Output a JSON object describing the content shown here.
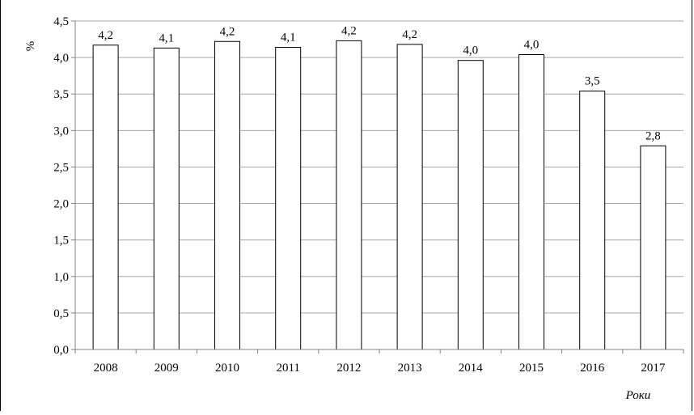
{
  "header_text": "",
  "chart_data": {
    "type": "bar",
    "categories": [
      "2008",
      "2009",
      "2010",
      "2011",
      "2012",
      "2013",
      "2014",
      "2015",
      "2016",
      "2017"
    ],
    "values": [
      4.17,
      4.13,
      4.22,
      4.14,
      4.23,
      4.18,
      3.96,
      4.04,
      3.54,
      2.79
    ],
    "data_labels": [
      "4,2",
      "4,1",
      "4,2",
      "4,1",
      "4,2",
      "4,2",
      "4,0",
      "4,0",
      "3,5",
      "2,8"
    ],
    "y_ticks": [
      "0,0",
      "0,5",
      "1,0",
      "1,5",
      "2,0",
      "2,5",
      "3,0",
      "3,5",
      "4,0",
      "4,5"
    ],
    "ylim": [
      0,
      4.5
    ],
    "ylabel": "%",
    "xlabel": "Роки",
    "title": "",
    "grid": true,
    "legend": "none",
    "colors": {
      "bar_fill": "#ffffff",
      "bar_stroke": "#000000",
      "grid": "#a6a6a6",
      "axis": "#808080"
    }
  }
}
